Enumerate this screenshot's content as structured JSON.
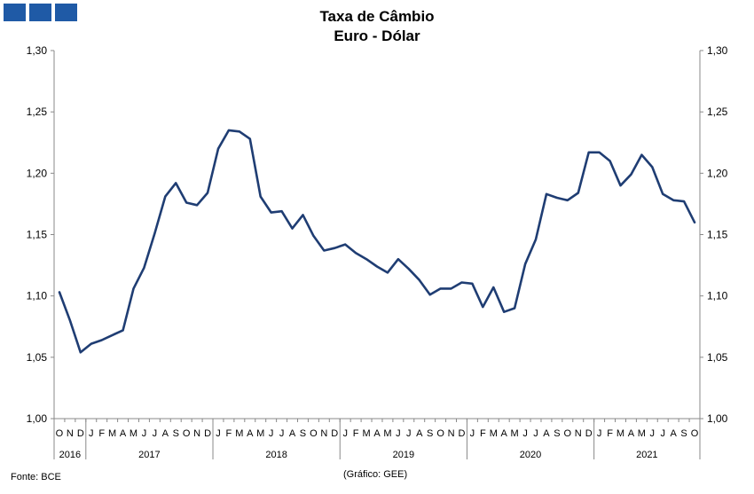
{
  "title_line1": "Taxa de Câmbio",
  "title_line2": "Euro - Dólar",
  "source": "Fonte: BCE",
  "credit": "(Gráfico: GEE)",
  "colors": {
    "line": "#1f3d73",
    "axis": "#888888",
    "logo": "#1f5aa6"
  },
  "chart_data": {
    "type": "line",
    "title": "Taxa de Câmbio Euro - Dólar",
    "ylim": [
      1.0,
      1.3
    ],
    "y_ticks": [
      "1,00",
      "1,05",
      "1,10",
      "1,15",
      "1,20",
      "1,25",
      "1,30"
    ],
    "y_tick_values": [
      1.0,
      1.05,
      1.1,
      1.15,
      1.2,
      1.25,
      1.3
    ],
    "month_labels": [
      "O",
      "N",
      "D",
      "J",
      "F",
      "M",
      "A",
      "M",
      "J",
      "J",
      "A",
      "S",
      "O",
      "N",
      "D",
      "J",
      "F",
      "M",
      "A",
      "M",
      "J",
      "J",
      "A",
      "S",
      "O",
      "N",
      "D",
      "J",
      "F",
      "M",
      "A",
      "M",
      "J",
      "J",
      "A",
      "S",
      "O",
      "N",
      "D",
      "J",
      "F",
      "M",
      "A",
      "M",
      "J",
      "J",
      "A",
      "S",
      "O",
      "N",
      "D",
      "J",
      "F",
      "M",
      "A",
      "M",
      "J",
      "J",
      "A",
      "S",
      "O"
    ],
    "years": [
      {
        "label": "2016",
        "start": 0,
        "count": 3
      },
      {
        "label": "2017",
        "start": 3,
        "count": 12
      },
      {
        "label": "2018",
        "start": 15,
        "count": 12
      },
      {
        "label": "2019",
        "start": 27,
        "count": 12
      },
      {
        "label": "2020",
        "start": 39,
        "count": 12
      },
      {
        "label": "2021",
        "start": 51,
        "count": 10
      }
    ],
    "grid": false,
    "series": [
      {
        "values": [
          1.103,
          1.08,
          1.054,
          1.061,
          1.064,
          1.068,
          1.072,
          1.106,
          1.123,
          1.151,
          1.181,
          1.192,
          1.176,
          1.174,
          1.184,
          1.22,
          1.235,
          1.234,
          1.228,
          1.181,
          1.168,
          1.169,
          1.155,
          1.166,
          1.149,
          1.137,
          1.139,
          1.142,
          1.135,
          1.13,
          1.124,
          1.119,
          1.13,
          1.122,
          1.113,
          1.101,
          1.106,
          1.106,
          1.111,
          1.11,
          1.091,
          1.107,
          1.087,
          1.09,
          1.126,
          1.146,
          1.183,
          1.18,
          1.178,
          1.184,
          1.217,
          1.217,
          1.21,
          1.19,
          1.199,
          1.215,
          1.205,
          1.183,
          1.178,
          1.177,
          1.16
        ]
      }
    ]
  }
}
